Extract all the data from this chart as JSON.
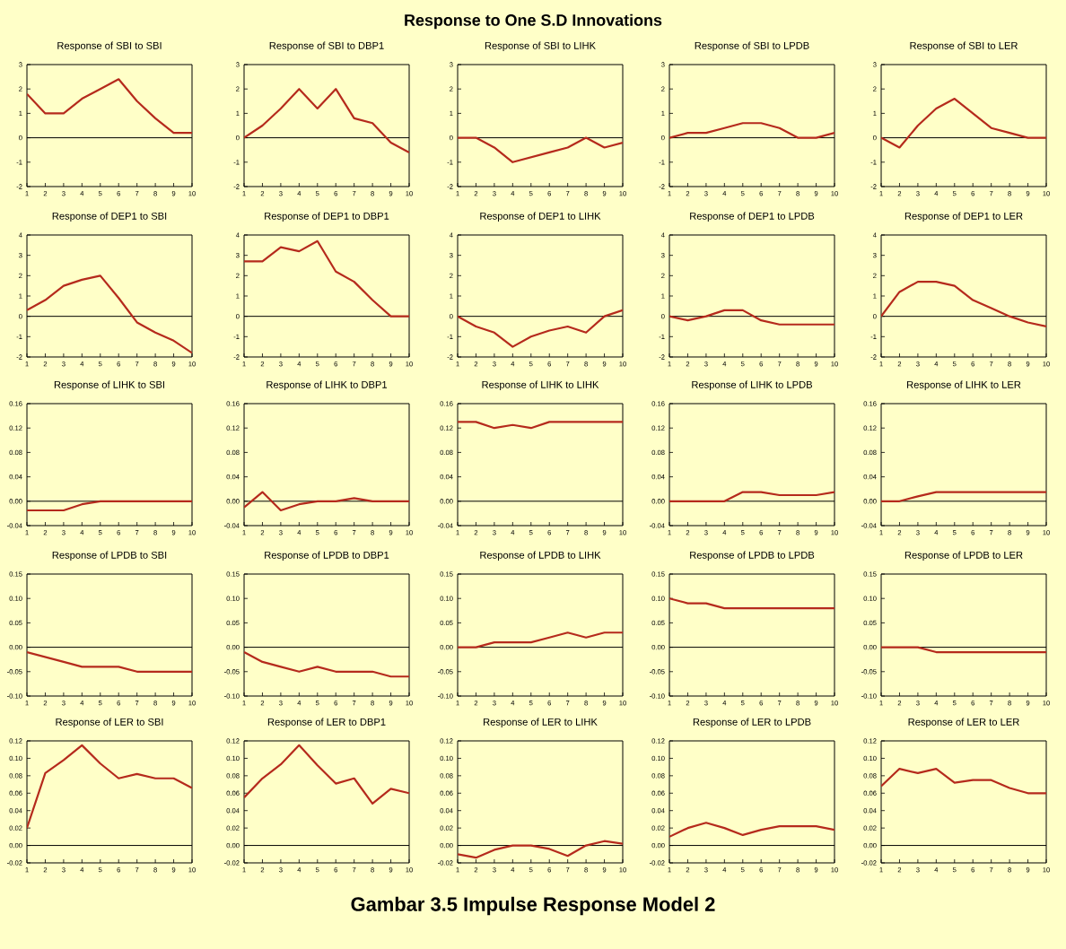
{
  "chart_data": [
    {
      "type": "line",
      "title": "Response of SBI to SBI",
      "annotations": [
        "Response to One S.D Innovations",
        "Gambar 3.5 Impulse Response Model 2"
      ],
      "x": [
        1,
        2,
        3,
        4,
        5,
        6,
        7,
        8,
        9,
        10
      ],
      "xlim": [
        1,
        10
      ],
      "xticks": [
        1,
        2,
        3,
        4,
        5,
        6,
        7,
        8,
        9,
        10
      ],
      "ylim": [
        -2,
        3
      ],
      "yticks": [
        -2,
        -1,
        0,
        1,
        2,
        3
      ],
      "color": "#b52a1c",
      "values": [
        1.8,
        1.0,
        1.0,
        1.6,
        2.0,
        2.4,
        1.5,
        0.8,
        0.2,
        0.2
      ],
      "ref_lines": [
        {
          "axis": "y",
          "value": 0
        }
      ]
    },
    {
      "type": "line",
      "title": "Response of SBI to DBP1",
      "x": [
        1,
        2,
        3,
        4,
        5,
        6,
        7,
        8,
        9,
        10
      ],
      "xlim": [
        1,
        10
      ],
      "xticks": [
        1,
        2,
        3,
        4,
        5,
        6,
        7,
        8,
        9,
        10
      ],
      "ylim": [
        -2,
        3
      ],
      "yticks": [
        -2,
        -1,
        0,
        1,
        2,
        3
      ],
      "color": "#b52a1c",
      "values": [
        0,
        0.5,
        1.2,
        2.0,
        1.2,
        2.0,
        0.8,
        0.6,
        -0.2,
        -0.6
      ],
      "ref_lines": [
        {
          "axis": "y",
          "value": 0
        }
      ]
    },
    {
      "type": "line",
      "title": "Response of SBI to LIHK",
      "x": [
        1,
        2,
        3,
        4,
        5,
        6,
        7,
        8,
        9,
        10
      ],
      "xlim": [
        1,
        10
      ],
      "xticks": [
        1,
        2,
        3,
        4,
        5,
        6,
        7,
        8,
        9,
        10
      ],
      "ylim": [
        -2,
        3
      ],
      "yticks": [
        -2,
        -1,
        0,
        1,
        2,
        3
      ],
      "color": "#b52a1c",
      "values": [
        0,
        0,
        -0.4,
        -1.0,
        -0.8,
        -0.6,
        -0.4,
        0,
        -0.4,
        -0.2
      ],
      "ref_lines": [
        {
          "axis": "y",
          "value": 0
        }
      ]
    },
    {
      "type": "line",
      "title": "Response of SBI to LPDB",
      "x": [
        1,
        2,
        3,
        4,
        5,
        6,
        7,
        8,
        9,
        10
      ],
      "xlim": [
        1,
        10
      ],
      "xticks": [
        1,
        2,
        3,
        4,
        5,
        6,
        7,
        8,
        9,
        10
      ],
      "ylim": [
        -2,
        3
      ],
      "yticks": [
        -2,
        -1,
        0,
        1,
        2,
        3
      ],
      "color": "#b52a1c",
      "values": [
        0,
        0.2,
        0.2,
        0.4,
        0.6,
        0.6,
        0.4,
        0,
        0,
        0.2
      ],
      "ref_lines": [
        {
          "axis": "y",
          "value": 0
        }
      ]
    },
    {
      "type": "line",
      "title": "Response of SBI to LER",
      "x": [
        1,
        2,
        3,
        4,
        5,
        6,
        7,
        8,
        9,
        10
      ],
      "xlim": [
        1,
        10
      ],
      "xticks": [
        1,
        2,
        3,
        4,
        5,
        6,
        7,
        8,
        9,
        10
      ],
      "ylim": [
        -2,
        3
      ],
      "yticks": [
        -2,
        -1,
        0,
        1,
        2,
        3
      ],
      "color": "#b52a1c",
      "values": [
        0,
        -0.4,
        0.5,
        1.2,
        1.6,
        1.0,
        0.4,
        0.2,
        0,
        0
      ],
      "ref_lines": [
        {
          "axis": "y",
          "value": 0
        }
      ]
    },
    {
      "type": "line",
      "title": "Response of DEP1 to SBI",
      "x": [
        1,
        2,
        3,
        4,
        5,
        6,
        7,
        8,
        9,
        10
      ],
      "xlim": [
        1,
        10
      ],
      "xticks": [
        1,
        2,
        3,
        4,
        5,
        6,
        7,
        8,
        9,
        10
      ],
      "ylim": [
        -2,
        4
      ],
      "yticks": [
        -2,
        -1,
        0,
        1,
        2,
        3,
        4
      ],
      "color": "#b52a1c",
      "values": [
        0.3,
        0.8,
        1.5,
        1.8,
        2.0,
        0.9,
        -0.3,
        -0.8,
        -1.2,
        -1.8
      ],
      "ref_lines": [
        {
          "axis": "y",
          "value": 0
        }
      ]
    },
    {
      "type": "line",
      "title": "Response of DEP1 to DBP1",
      "x": [
        1,
        2,
        3,
        4,
        5,
        6,
        7,
        8,
        9,
        10
      ],
      "xlim": [
        1,
        10
      ],
      "xticks": [
        1,
        2,
        3,
        4,
        5,
        6,
        7,
        8,
        9,
        10
      ],
      "ylim": [
        -2,
        4
      ],
      "yticks": [
        -2,
        -1,
        0,
        1,
        2,
        3,
        4
      ],
      "color": "#b52a1c",
      "values": [
        2.7,
        2.7,
        3.4,
        3.2,
        3.7,
        2.2,
        1.7,
        0.8,
        0,
        0
      ],
      "ref_lines": [
        {
          "axis": "y",
          "value": 0
        }
      ]
    },
    {
      "type": "line",
      "title": "Response of DEP1 to LIHK",
      "x": [
        1,
        2,
        3,
        4,
        5,
        6,
        7,
        8,
        9,
        10
      ],
      "xlim": [
        1,
        10
      ],
      "xticks": [
        1,
        2,
        3,
        4,
        5,
        6,
        7,
        8,
        9,
        10
      ],
      "ylim": [
        -2,
        4
      ],
      "yticks": [
        -2,
        -1,
        0,
        1,
        2,
        3,
        4
      ],
      "color": "#b52a1c",
      "values": [
        0,
        -0.5,
        -0.8,
        -1.5,
        -1.0,
        -0.7,
        -0.5,
        -0.8,
        0,
        0.3
      ],
      "ref_lines": [
        {
          "axis": "y",
          "value": 0
        }
      ]
    },
    {
      "type": "line",
      "title": "Response of DEP1 to LPDB",
      "x": [
        1,
        2,
        3,
        4,
        5,
        6,
        7,
        8,
        9,
        10
      ],
      "xlim": [
        1,
        10
      ],
      "xticks": [
        1,
        2,
        3,
        4,
        5,
        6,
        7,
        8,
        9,
        10
      ],
      "ylim": [
        -2,
        4
      ],
      "yticks": [
        -2,
        -1,
        0,
        1,
        2,
        3,
        4
      ],
      "color": "#b52a1c",
      "values": [
        0,
        -0.2,
        0,
        0.3,
        0.3,
        -0.2,
        -0.4,
        -0.4,
        -0.4,
        -0.4
      ],
      "ref_lines": [
        {
          "axis": "y",
          "value": 0
        }
      ]
    },
    {
      "type": "line",
      "title": "Response of DEP1 to LER",
      "x": [
        1,
        2,
        3,
        4,
        5,
        6,
        7,
        8,
        9,
        10
      ],
      "xlim": [
        1,
        10
      ],
      "xticks": [
        1,
        2,
        3,
        4,
        5,
        6,
        7,
        8,
        9,
        10
      ],
      "ylim": [
        -2,
        4
      ],
      "yticks": [
        -2,
        -1,
        0,
        1,
        2,
        3,
        4
      ],
      "color": "#b52a1c",
      "values": [
        0,
        1.2,
        1.7,
        1.7,
        1.5,
        0.8,
        0.4,
        0,
        -0.3,
        -0.5
      ],
      "ref_lines": [
        {
          "axis": "y",
          "value": 0
        }
      ]
    },
    {
      "type": "line",
      "title": "Response of LIHK to SBI",
      "x": [
        1,
        2,
        3,
        4,
        5,
        6,
        7,
        8,
        9,
        10
      ],
      "xlim": [
        1,
        10
      ],
      "xticks": [
        1,
        2,
        3,
        4,
        5,
        6,
        7,
        8,
        9,
        10
      ],
      "ylim": [
        -0.04,
        0.16
      ],
      "yticks": [
        {
          "value": -0.04,
          "label": "-0.04"
        },
        {
          "value": 0,
          "label": "0.00"
        },
        0.04,
        0.08,
        0.12,
        0.16
      ],
      "color": "#b52a1c",
      "values": [
        -0.015,
        -0.015,
        -0.015,
        -0.005,
        0,
        0,
        0,
        0,
        0,
        0
      ],
      "ref_lines": [
        {
          "axis": "y",
          "value": 0
        }
      ]
    },
    {
      "type": "line",
      "title": "Response of LIHK to DBP1",
      "x": [
        1,
        2,
        3,
        4,
        5,
        6,
        7,
        8,
        9,
        10
      ],
      "xlim": [
        1,
        10
      ],
      "xticks": [
        1,
        2,
        3,
        4,
        5,
        6,
        7,
        8,
        9,
        10
      ],
      "ylim": [
        -0.04,
        0.16
      ],
      "yticks": [
        {
          "value": -0.04,
          "label": "-0.04"
        },
        {
          "value": 0,
          "label": "0.00"
        },
        0.04,
        0.08,
        0.12,
        0.16
      ],
      "color": "#b52a1c",
      "values": [
        -0.01,
        0.015,
        -0.015,
        -0.005,
        0,
        0,
        0.005,
        0,
        0,
        0
      ],
      "ref_lines": [
        {
          "axis": "y",
          "value": 0
        }
      ]
    },
    {
      "type": "line",
      "title": "Response of LIHK to LIHK",
      "x": [
        1,
        2,
        3,
        4,
        5,
        6,
        7,
        8,
        9,
        10
      ],
      "xlim": [
        1,
        10
      ],
      "xticks": [
        1,
        2,
        3,
        4,
        5,
        6,
        7,
        8,
        9,
        10
      ],
      "ylim": [
        -0.04,
        0.16
      ],
      "yticks": [
        {
          "value": -0.04,
          "label": "-0.04"
        },
        {
          "value": 0,
          "label": "0.00"
        },
        0.04,
        0.08,
        0.12,
        0.16
      ],
      "color": "#b52a1c",
      "values": [
        0.13,
        0.13,
        0.12,
        0.125,
        0.12,
        0.13,
        0.13,
        0.13,
        0.13,
        0.13
      ],
      "ref_lines": [
        {
          "axis": "y",
          "value": 0
        }
      ]
    },
    {
      "type": "line",
      "title": "Response of LIHK to LPDB",
      "x": [
        1,
        2,
        3,
        4,
        5,
        6,
        7,
        8,
        9,
        10
      ],
      "xlim": [
        1,
        10
      ],
      "xticks": [
        1,
        2,
        3,
        4,
        5,
        6,
        7,
        8,
        9,
        10
      ],
      "ylim": [
        -0.04,
        0.16
      ],
      "yticks": [
        {
          "value": -0.04,
          "label": "-0.04"
        },
        {
          "value": 0,
          "label": "0.00"
        },
        0.04,
        0.08,
        0.12,
        0.16
      ],
      "color": "#b52a1c",
      "values": [
        0,
        0,
        0,
        0,
        0.015,
        0.015,
        0.01,
        0.01,
        0.01,
        0.015
      ],
      "ref_lines": [
        {
          "axis": "y",
          "value": 0
        }
      ]
    },
    {
      "type": "line",
      "title": "Response of LIHK to LER",
      "x": [
        1,
        2,
        3,
        4,
        5,
        6,
        7,
        8,
        9,
        10
      ],
      "xlim": [
        1,
        10
      ],
      "xticks": [
        1,
        2,
        3,
        4,
        5,
        6,
        7,
        8,
        9,
        10
      ],
      "ylim": [
        -0.04,
        0.16
      ],
      "yticks": [
        {
          "value": -0.04,
          "label": "-0.04"
        },
        {
          "value": 0,
          "label": "0.00"
        },
        0.04,
        0.08,
        0.12,
        0.16
      ],
      "color": "#b52a1c",
      "values": [
        0,
        0,
        0.008,
        0.015,
        0.015,
        0.015,
        0.015,
        0.015,
        0.015,
        0.015
      ],
      "ref_lines": [
        {
          "axis": "y",
          "value": 0
        }
      ]
    },
    {
      "type": "line",
      "title": "Response of LPDB to SBI",
      "x": [
        1,
        2,
        3,
        4,
        5,
        6,
        7,
        8,
        9,
        10
      ],
      "xlim": [
        1,
        10
      ],
      "xticks": [
        1,
        2,
        3,
        4,
        5,
        6,
        7,
        8,
        9,
        10
      ],
      "ylim": [
        -0.1,
        0.15
      ],
      "yticks": [
        {
          "value": -0.1,
          "label": "-0.10"
        },
        -0.05,
        {
          "value": 0,
          "label": "0.00"
        },
        0.05,
        {
          "value": 0.1,
          "label": "0.10"
        },
        0.15
      ],
      "color": "#b52a1c",
      "values": [
        -0.01,
        -0.02,
        -0.03,
        -0.04,
        -0.04,
        -0.04,
        -0.05,
        -0.05,
        -0.05,
        -0.05
      ],
      "ref_lines": [
        {
          "axis": "y",
          "value": 0
        }
      ]
    },
    {
      "type": "line",
      "title": "Response of LPDB to DBP1",
      "x": [
        1,
        2,
        3,
        4,
        5,
        6,
        7,
        8,
        9,
        10
      ],
      "xlim": [
        1,
        10
      ],
      "xticks": [
        1,
        2,
        3,
        4,
        5,
        6,
        7,
        8,
        9,
        10
      ],
      "ylim": [
        -0.1,
        0.15
      ],
      "yticks": [
        {
          "value": -0.1,
          "label": "-0.10"
        },
        -0.05,
        {
          "value": 0,
          "label": "0.00"
        },
        0.05,
        {
          "value": 0.1,
          "label": "0.10"
        },
        0.15
      ],
      "color": "#b52a1c",
      "values": [
        -0.01,
        -0.03,
        -0.04,
        -0.05,
        -0.04,
        -0.05,
        -0.05,
        -0.05,
        -0.06,
        -0.06
      ],
      "ref_lines": [
        {
          "axis": "y",
          "value": 0
        }
      ]
    },
    {
      "type": "line",
      "title": "Response of LPDB to LIHK",
      "x": [
        1,
        2,
        3,
        4,
        5,
        6,
        7,
        8,
        9,
        10
      ],
      "xlim": [
        1,
        10
      ],
      "xticks": [
        1,
        2,
        3,
        4,
        5,
        6,
        7,
        8,
        9,
        10
      ],
      "ylim": [
        -0.1,
        0.15
      ],
      "yticks": [
        {
          "value": -0.1,
          "label": "-0.10"
        },
        -0.05,
        {
          "value": 0,
          "label": "0.00"
        },
        0.05,
        {
          "value": 0.1,
          "label": "0.10"
        },
        0.15
      ],
      "color": "#b52a1c",
      "values": [
        0,
        0,
        0.01,
        0.01,
        0.01,
        0.02,
        0.03,
        0.02,
        0.03,
        0.03
      ],
      "ref_lines": [
        {
          "axis": "y",
          "value": 0
        }
      ]
    },
    {
      "type": "line",
      "title": "Response of LPDB to LPDB",
      "x": [
        1,
        2,
        3,
        4,
        5,
        6,
        7,
        8,
        9,
        10
      ],
      "xlim": [
        1,
        10
      ],
      "xticks": [
        1,
        2,
        3,
        4,
        5,
        6,
        7,
        8,
        9,
        10
      ],
      "ylim": [
        -0.1,
        0.15
      ],
      "yticks": [
        {
          "value": -0.1,
          "label": "-0.10"
        },
        -0.05,
        {
          "value": 0,
          "label": "0.00"
        },
        0.05,
        {
          "value": 0.1,
          "label": "0.10"
        },
        0.15
      ],
      "color": "#b52a1c",
      "values": [
        0.1,
        0.09,
        0.09,
        0.08,
        0.08,
        0.08,
        0.08,
        0.08,
        0.08,
        0.08
      ],
      "ref_lines": [
        {
          "axis": "y",
          "value": 0
        }
      ]
    },
    {
      "type": "line",
      "title": "Response of LPDB to LER",
      "x": [
        1,
        2,
        3,
        4,
        5,
        6,
        7,
        8,
        9,
        10
      ],
      "xlim": [
        1,
        10
      ],
      "xticks": [
        1,
        2,
        3,
        4,
        5,
        6,
        7,
        8,
        9,
        10
      ],
      "ylim": [
        -0.1,
        0.15
      ],
      "yticks": [
        {
          "value": -0.1,
          "label": "-0.10"
        },
        -0.05,
        {
          "value": 0,
          "label": "0.00"
        },
        0.05,
        {
          "value": 0.1,
          "label": "0.10"
        },
        0.15
      ],
      "color": "#b52a1c",
      "values": [
        0,
        0,
        0,
        -0.01,
        -0.01,
        -0.01,
        -0.01,
        -0.01,
        -0.01,
        -0.01
      ],
      "ref_lines": [
        {
          "axis": "y",
          "value": 0
        }
      ]
    },
    {
      "type": "line",
      "title": "Response of LER to SBI",
      "x": [
        1,
        2,
        3,
        4,
        5,
        6,
        7,
        8,
        9,
        10
      ],
      "xlim": [
        1,
        10
      ],
      "xticks": [
        1,
        2,
        3,
        4,
        5,
        6,
        7,
        8,
        9,
        10
      ],
      "ylim": [
        -0.02,
        0.12
      ],
      "yticks": [
        -0.02,
        {
          "value": 0,
          "label": "0.00"
        },
        0.02,
        0.04,
        0.06,
        0.08,
        {
          "value": 0.1,
          "label": "0.10"
        },
        0.12
      ],
      "color": "#b52a1c",
      "values": [
        0.02,
        0.083,
        0.098,
        0.115,
        0.094,
        0.077,
        0.082,
        0.077,
        0.077,
        0.066
      ],
      "ref_lines": [
        {
          "axis": "y",
          "value": 0
        }
      ]
    },
    {
      "type": "line",
      "title": "Response of LER to DBP1",
      "x": [
        1,
        2,
        3,
        4,
        5,
        6,
        7,
        8,
        9,
        10
      ],
      "xlim": [
        1,
        10
      ],
      "xticks": [
        1,
        2,
        3,
        4,
        5,
        6,
        7,
        8,
        9,
        10
      ],
      "ylim": [
        -0.02,
        0.12
      ],
      "yticks": [
        -0.02,
        {
          "value": 0,
          "label": "0.00"
        },
        0.02,
        0.04,
        0.06,
        0.08,
        {
          "value": 0.1,
          "label": "0.10"
        },
        0.12
      ],
      "color": "#b52a1c",
      "values": [
        0.055,
        0.077,
        0.093,
        0.115,
        0.092,
        0.071,
        0.077,
        0.048,
        0.065,
        0.06
      ],
      "ref_lines": [
        {
          "axis": "y",
          "value": 0
        }
      ]
    },
    {
      "type": "line",
      "title": "Response of LER to LIHK",
      "x": [
        1,
        2,
        3,
        4,
        5,
        6,
        7,
        8,
        9,
        10
      ],
      "xlim": [
        1,
        10
      ],
      "xticks": [
        1,
        2,
        3,
        4,
        5,
        6,
        7,
        8,
        9,
        10
      ],
      "ylim": [
        -0.02,
        0.12
      ],
      "yticks": [
        -0.02,
        {
          "value": 0,
          "label": "0.00"
        },
        0.02,
        0.04,
        0.06,
        0.08,
        {
          "value": 0.1,
          "label": "0.10"
        },
        0.12
      ],
      "color": "#b52a1c",
      "values": [
        -0.01,
        -0.014,
        -0.005,
        0,
        0,
        -0.004,
        -0.012,
        0,
        0.005,
        0.002
      ],
      "ref_lines": [
        {
          "axis": "y",
          "value": 0
        }
      ]
    },
    {
      "type": "line",
      "title": "Response of LER to LPDB",
      "x": [
        1,
        2,
        3,
        4,
        5,
        6,
        7,
        8,
        9,
        10
      ],
      "xlim": [
        1,
        10
      ],
      "xticks": [
        1,
        2,
        3,
        4,
        5,
        6,
        7,
        8,
        9,
        10
      ],
      "ylim": [
        -0.02,
        0.12
      ],
      "yticks": [
        -0.02,
        {
          "value": 0,
          "label": "0.00"
        },
        0.02,
        0.04,
        0.06,
        0.08,
        {
          "value": 0.1,
          "label": "0.10"
        },
        0.12
      ],
      "color": "#b52a1c",
      "values": [
        0.01,
        0.02,
        0.026,
        0.02,
        0.012,
        0.018,
        0.022,
        0.022,
        0.022,
        0.018
      ],
      "ref_lines": [
        {
          "axis": "y",
          "value": 0
        }
      ]
    },
    {
      "type": "line",
      "title": "Response of LER to LER",
      "x": [
        1,
        2,
        3,
        4,
        5,
        6,
        7,
        8,
        9,
        10
      ],
      "xlim": [
        1,
        10
      ],
      "xticks": [
        1,
        2,
        3,
        4,
        5,
        6,
        7,
        8,
        9,
        10
      ],
      "ylim": [
        -0.02,
        0.12
      ],
      "yticks": [
        -0.02,
        {
          "value": 0,
          "label": "0.00"
        },
        0.02,
        0.04,
        0.06,
        0.08,
        {
          "value": 0.1,
          "label": "0.10"
        },
        0.12
      ],
      "color": "#b52a1c",
      "values": [
        0.068,
        0.088,
        0.083,
        0.088,
        0.072,
        0.075,
        0.075,
        0.066,
        0.06,
        0.06
      ],
      "ref_lines": [
        {
          "axis": "y",
          "value": 0
        }
      ]
    }
  ]
}
